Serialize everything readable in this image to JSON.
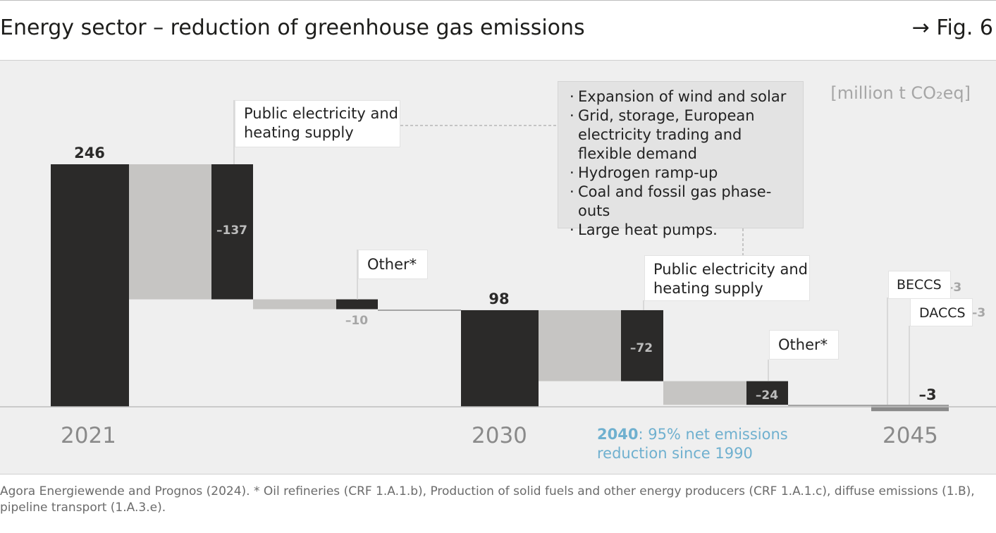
{
  "header": {
    "title": "Energy sector – reduction of greenhouse gas emissions",
    "fig_ref": "→ Fig. 6"
  },
  "unit_label": "[million t CO₂eq]",
  "measures": {
    "items": [
      "Expansion of wind and solar",
      "Grid, storage, European electricity trading and flexible demand",
      "Hydrogen ramp-up",
      "Coal and fossil gas phase-outs",
      "Large heat pumps."
    ]
  },
  "callouts": {
    "public_2021_line1": "Public electricity and",
    "public_2021_line2": "heating supply",
    "other_2021": "Other*",
    "public_2030_line1": "Public electricity and",
    "public_2030_line2": "heating supply",
    "other_2030": "Other*",
    "beccs": "BECCS",
    "daccs": "DACCS"
  },
  "note_2040": {
    "year": "2040",
    "text_line1": ": 95% net emissions",
    "text_line2": "reduction since 1990"
  },
  "source": "Agora Energiewende and Prognos (2024). * Oil refineries (CRF 1.A.1.b), Production of solid fuels and other energy producers (CRF 1.A.1.c), diffuse emissions (1.B), pipeline transport (1.A.3.e).",
  "colors": {
    "dark": "#2b2a29",
    "connector": "#c6c5c3",
    "label_gray": "#a6a6a6",
    "accent_2040": "#6fb0cf"
  },
  "chart_data": {
    "type": "waterfall",
    "title": "Energy sector – reduction of greenhouse gas emissions",
    "ylabel": "[million t CO₂eq]",
    "ylim": [
      0,
      246
    ],
    "steps": [
      {
        "name": "2021",
        "kind": "total",
        "value": 246,
        "label": "246",
        "tick": "2021"
      },
      {
        "name": "Public electricity and heating supply",
        "kind": "delta",
        "value": -137,
        "label": "–137"
      },
      {
        "name": "Other*",
        "kind": "delta",
        "value": -10,
        "label": "–10"
      },
      {
        "name": "2030",
        "kind": "total",
        "value": 98,
        "label": "98",
        "tick": "2030"
      },
      {
        "name": "Public electricity and heating supply",
        "kind": "delta",
        "value": -72,
        "label": "–72"
      },
      {
        "name": "Other*",
        "kind": "delta",
        "value": -24,
        "label": "–24"
      },
      {
        "name": "BECCS",
        "kind": "delta",
        "value": -3,
        "label": "–3"
      },
      {
        "name": "DACCS",
        "kind": "delta",
        "value": -3,
        "label": "–3"
      },
      {
        "name": "2045",
        "kind": "total",
        "value": -3,
        "label": "–3",
        "tick": "2045"
      }
    ]
  }
}
